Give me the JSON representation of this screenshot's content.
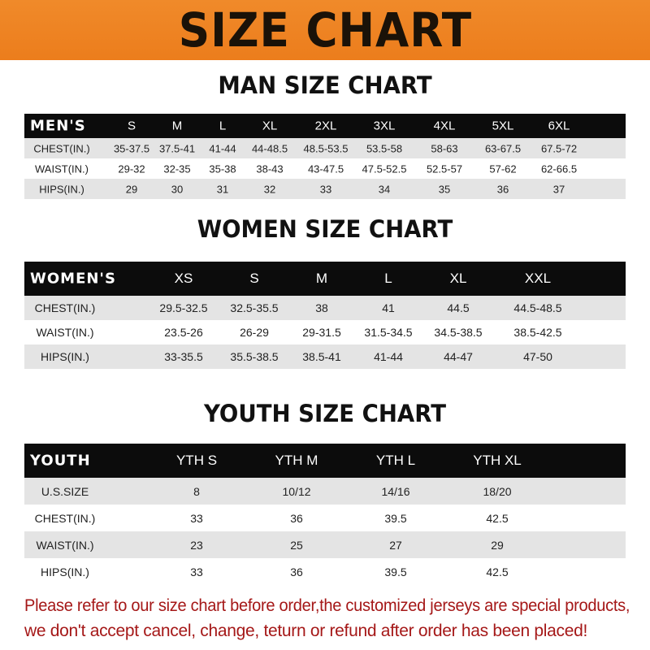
{
  "banner": {
    "title": "SIZE CHART",
    "color": "#ee8222"
  },
  "men": {
    "title": "MAN SIZE CHART",
    "header": [
      "MEN'S",
      "S",
      "M",
      "L",
      "XL",
      "2XL",
      "3XL",
      "4XL",
      "5XL",
      "6XL"
    ],
    "rows": [
      [
        "CHEST(IN.)",
        "35-37.5",
        "37.5-41",
        "41-44",
        "44-48.5",
        "48.5-53.5",
        "53.5-58",
        "58-63",
        "63-67.5",
        "67.5-72"
      ],
      [
        "WAIST(IN.)",
        "29-32",
        "32-35",
        "35-38",
        "38-43",
        "43-47.5",
        "47.5-52.5",
        "52.5-57",
        "57-62",
        "62-66.5"
      ],
      [
        "HIPS(IN.)",
        "29",
        "30",
        "31",
        "32",
        "33",
        "34",
        "35",
        "36",
        "37"
      ]
    ]
  },
  "women": {
    "title": "WOMEN SIZE CHART",
    "header": [
      "WOMEN'S",
      "XS",
      "S",
      "M",
      "L",
      "XL",
      "XXL"
    ],
    "rows": [
      [
        "CHEST(IN.)",
        "29.5-32.5",
        "32.5-35.5",
        "38",
        "41",
        "44.5",
        "44.5-48.5"
      ],
      [
        "WAIST(IN.)",
        "23.5-26",
        "26-29",
        "29-31.5",
        "31.5-34.5",
        "34.5-38.5",
        "38.5-42.5"
      ],
      [
        "HIPS(IN.)",
        "33-35.5",
        "35.5-38.5",
        "38.5-41",
        "41-44",
        "44-47",
        "47-50"
      ]
    ]
  },
  "youth": {
    "title": "YOUTH SIZE CHART",
    "header": [
      "YOUTH",
      "YTH S",
      "YTH M",
      "YTH L",
      "YTH XL"
    ],
    "rows": [
      [
        "U.S.SIZE",
        "8",
        "10/12",
        "14/16",
        "18/20"
      ],
      [
        "CHEST(IN.)",
        "33",
        "36",
        "39.5",
        "42.5"
      ],
      [
        "WAIST(IN.)",
        "23",
        "25",
        "27",
        "29"
      ],
      [
        "HIPS(IN.)",
        "33",
        "36",
        "39.5",
        "42.5"
      ]
    ]
  },
  "note": {
    "line1": "Please refer to our size chart before order,the customized jerseys are special products,",
    "line2": "we don't accept cancel, change, teturn or refund after order has been placed!",
    "color": "#a51818"
  }
}
